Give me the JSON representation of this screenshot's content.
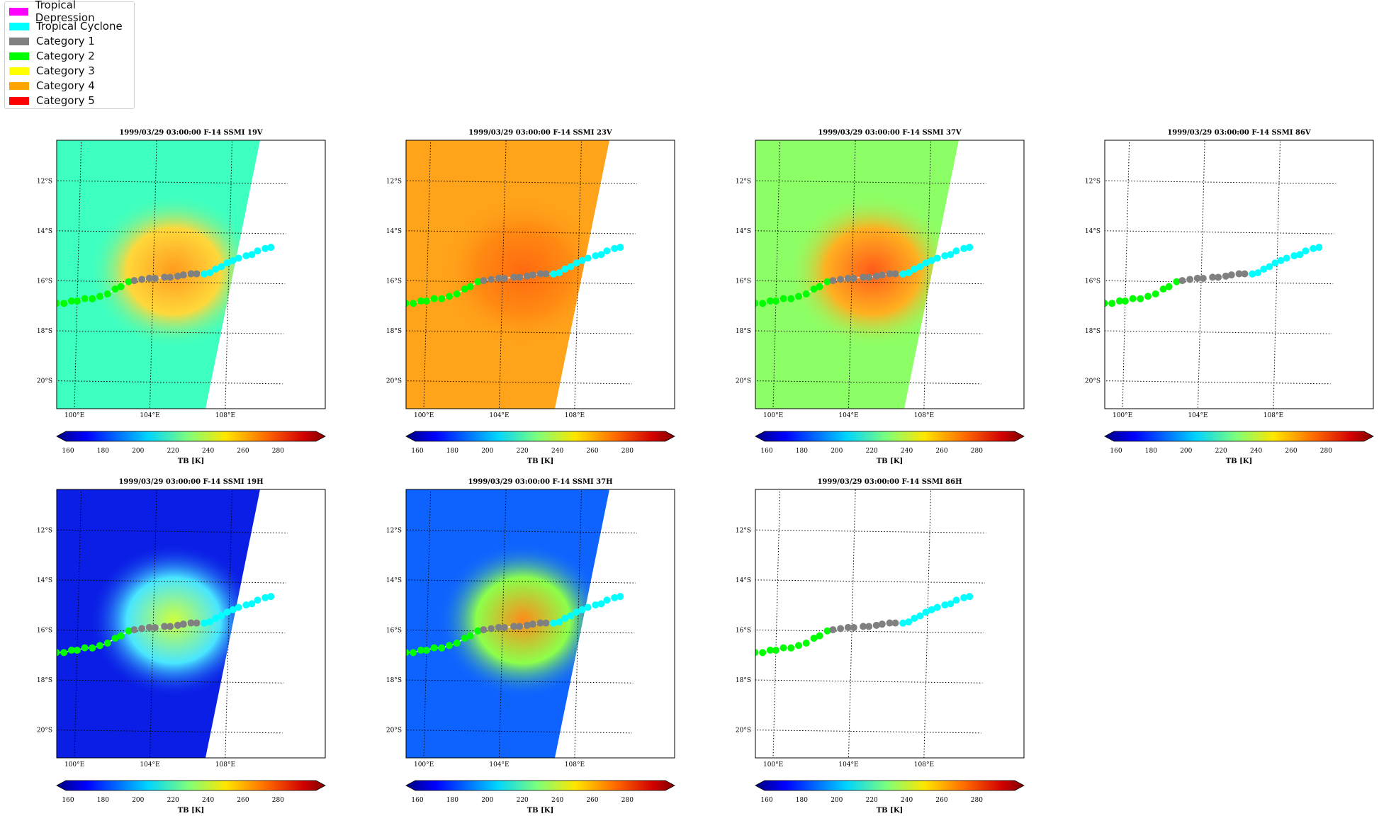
{
  "legend": {
    "items": [
      {
        "label": "Tropical Depression",
        "color": "#ff00ff"
      },
      {
        "label": "Tropical Cyclone",
        "color": "#00ffff"
      },
      {
        "label": "Category 1",
        "color": "#808080"
      },
      {
        "label": "Category 2",
        "color": "#00ff00"
      },
      {
        "label": "Category 3",
        "color": "#ffff00"
      },
      {
        "label": "Category 4",
        "color": "#ffa500"
      },
      {
        "label": "Category 5",
        "color": "#ff0000"
      }
    ]
  },
  "panels": [
    {
      "title": "1999/03/29 03:00:00  F-14 SSMI 19V",
      "mode": "swath",
      "bg": "#3dffc0",
      "eye": [
        "#ffd83a",
        "#ff9a1e"
      ]
    },
    {
      "title": "1999/03/29 03:00:00  F-14 SSMI 23V",
      "mode": "swath",
      "bg": "#ffa41a",
      "eye": [
        "#ff8a12",
        "#ff6a10"
      ]
    },
    {
      "title": "1999/03/29 03:00:00  F-14 SSMI 37V",
      "mode": "swath",
      "bg": "#8cff66",
      "eye": [
        "#ffb020",
        "#ff5a1a"
      ]
    },
    {
      "title": "1999/03/29 03:00:00  F-14 SSMI 86V",
      "mode": "empty"
    },
    {
      "title": "1999/03/29 03:00:00  F-14 SSMI 19H",
      "mode": "swath",
      "bg": "#0a1ee6",
      "eye": [
        "#49e6ff",
        "#cfff3a"
      ]
    },
    {
      "title": "1999/03/29 03:00:00  F-14 SSMI 37H",
      "mode": "swath",
      "bg": "#0e63ff",
      "eye": [
        "#8cff4a",
        "#ff8a1a"
      ]
    },
    {
      "title": "1999/03/29 03:00:00  F-14 SSMI 86H",
      "mode": "empty"
    }
  ],
  "axes": {
    "lat_labels": [
      "12°S",
      "14°S",
      "16°S",
      "18°S",
      "20°S"
    ],
    "lon_labels": [
      "100°E",
      "104°E",
      "108°E"
    ]
  },
  "colorbar": {
    "label": "TB [K]",
    "ticks": [
      "160",
      "180",
      "200",
      "220",
      "240",
      "260",
      "280"
    ]
  },
  "track": [
    {
      "lon": 98.9,
      "lat": -16.9,
      "cat": 2
    },
    {
      "lon": 99.3,
      "lat": -16.9,
      "cat": 2
    },
    {
      "lon": 99.7,
      "lat": -16.8,
      "cat": 2
    },
    {
      "lon": 100.0,
      "lat": -16.8,
      "cat": 2
    },
    {
      "lon": 100.4,
      "lat": -16.7,
      "cat": 2
    },
    {
      "lon": 100.8,
      "lat": -16.7,
      "cat": 2
    },
    {
      "lon": 101.2,
      "lat": -16.6,
      "cat": 2
    },
    {
      "lon": 101.6,
      "lat": -16.5,
      "cat": 2
    },
    {
      "lon": 102.0,
      "lat": -16.3,
      "cat": 2
    },
    {
      "lon": 102.3,
      "lat": -16.2,
      "cat": 2
    },
    {
      "lon": 102.7,
      "lat": -16.0,
      "cat": 2
    },
    {
      "lon": 103.0,
      "lat": -15.95,
      "cat": 1
    },
    {
      "lon": 103.4,
      "lat": -15.9,
      "cat": 1
    },
    {
      "lon": 103.8,
      "lat": -15.85,
      "cat": 1
    },
    {
      "lon": 104.1,
      "lat": -15.85,
      "cat": 1
    },
    {
      "lon": 104.6,
      "lat": -15.8,
      "cat": 1
    },
    {
      "lon": 104.9,
      "lat": -15.8,
      "cat": 1
    },
    {
      "lon": 105.3,
      "lat": -15.75,
      "cat": 1
    },
    {
      "lon": 105.6,
      "lat": -15.7,
      "cat": 1
    },
    {
      "lon": 106.0,
      "lat": -15.65,
      "cat": 1
    },
    {
      "lon": 106.3,
      "lat": -15.65,
      "cat": 1
    },
    {
      "lon": 106.7,
      "lat": -15.65,
      "cat": 0
    },
    {
      "lon": 107.0,
      "lat": -15.6,
      "cat": 0
    },
    {
      "lon": 107.3,
      "lat": -15.45,
      "cat": 0
    },
    {
      "lon": 107.6,
      "lat": -15.35,
      "cat": 0
    },
    {
      "lon": 107.9,
      "lat": -15.2,
      "cat": 0
    },
    {
      "lon": 108.2,
      "lat": -15.1,
      "cat": 0
    },
    {
      "lon": 108.5,
      "lat": -15.0,
      "cat": 0
    },
    {
      "lon": 108.9,
      "lat": -14.9,
      "cat": 0
    },
    {
      "lon": 109.2,
      "lat": -14.85,
      "cat": 0
    },
    {
      "lon": 109.5,
      "lat": -14.7,
      "cat": 0
    },
    {
      "lon": 109.9,
      "lat": -14.6,
      "cat": 0
    },
    {
      "lon": 110.2,
      "lat": -14.55,
      "cat": 0
    }
  ]
}
